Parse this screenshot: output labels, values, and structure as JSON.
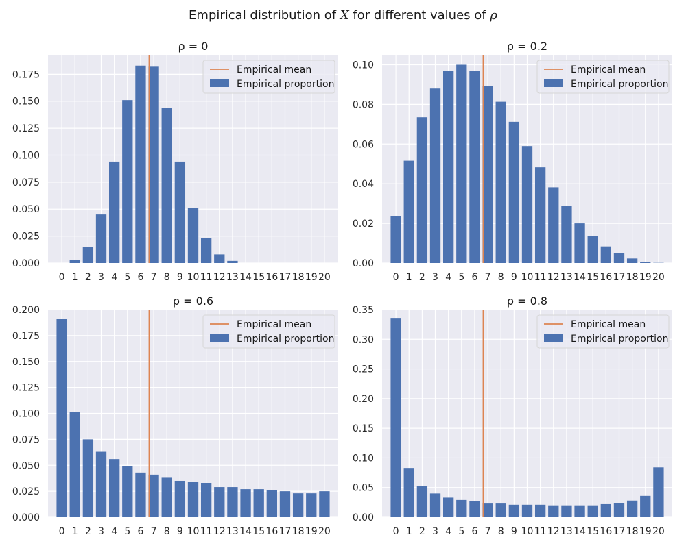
{
  "figure": {
    "title_prefix": "Empirical distribution of ",
    "title_var": "X",
    "title_mid": " for different values of ",
    "title_sym": "ρ"
  },
  "colors": {
    "bar": "#4c72b0",
    "mean_line": "#dd8452",
    "axes_bg": "#eaeaf2",
    "grid": "#ffffff"
  },
  "chart_data": [
    {
      "type": "bar",
      "title": "ρ = 0",
      "grid": true,
      "legend_position": "top-right",
      "legend": [
        "Empirical mean",
        "Empirical proportion"
      ],
      "categories": [
        "0",
        "1",
        "2",
        "3",
        "4",
        "5",
        "6",
        "7",
        "8",
        "9",
        "10",
        "11",
        "12",
        "13",
        "14",
        "15",
        "16",
        "17",
        "18",
        "19",
        "20"
      ],
      "series": [
        {
          "name": "Empirical proportion",
          "values": [
            0.0,
            0.003,
            0.015,
            0.045,
            0.094,
            0.151,
            0.183,
            0.182,
            0.144,
            0.094,
            0.051,
            0.023,
            0.008,
            0.002,
            0.0,
            0.0,
            0.0,
            0.0,
            0.0,
            0.0,
            0.0
          ]
        }
      ],
      "mean": 6.65,
      "ylim": [
        0,
        0.193
      ],
      "yticks": [
        "0.000",
        "0.025",
        "0.050",
        "0.075",
        "0.100",
        "0.125",
        "0.150",
        "0.175"
      ]
    },
    {
      "type": "bar",
      "title": "ρ = 0.2",
      "grid": true,
      "legend_position": "top-right",
      "legend": [
        "Empirical mean",
        "Empirical proportion"
      ],
      "categories": [
        "0",
        "1",
        "2",
        "3",
        "4",
        "5",
        "6",
        "7",
        "8",
        "9",
        "10",
        "11",
        "12",
        "13",
        "14",
        "15",
        "16",
        "17",
        "18",
        "19",
        "20"
      ],
      "series": [
        {
          "name": "Empirical proportion",
          "values": [
            0.0235,
            0.0516,
            0.0735,
            0.088,
            0.097,
            0.1,
            0.0968,
            0.0893,
            0.0813,
            0.0712,
            0.059,
            0.0483,
            0.0382,
            0.029,
            0.02,
            0.0138,
            0.0084,
            0.005,
            0.0023,
            0.0005,
            0.0001
          ]
        }
      ],
      "mean": 6.65,
      "ylim": [
        0,
        0.105
      ],
      "yticks": [
        "0.00",
        "0.02",
        "0.04",
        "0.06",
        "0.08",
        "0.10"
      ]
    },
    {
      "type": "bar",
      "title": "ρ = 0.6",
      "grid": true,
      "legend_position": "top-right",
      "legend": [
        "Empirical mean",
        "Empirical proportion"
      ],
      "categories": [
        "0",
        "1",
        "2",
        "3",
        "4",
        "5",
        "6",
        "7",
        "8",
        "9",
        "10",
        "11",
        "12",
        "13",
        "14",
        "15",
        "16",
        "17",
        "18",
        "19",
        "20"
      ],
      "series": [
        {
          "name": "Empirical proportion",
          "values": [
            0.191,
            0.101,
            0.075,
            0.063,
            0.056,
            0.049,
            0.043,
            0.041,
            0.038,
            0.035,
            0.034,
            0.033,
            0.029,
            0.029,
            0.027,
            0.027,
            0.026,
            0.025,
            0.023,
            0.023,
            0.025
          ]
        }
      ],
      "mean": 6.65,
      "ylim": [
        0,
        0.2
      ],
      "yticks": [
        "0.000",
        "0.025",
        "0.050",
        "0.075",
        "0.100",
        "0.125",
        "0.150",
        "0.175",
        "0.200"
      ]
    },
    {
      "type": "bar",
      "title": "ρ = 0.8",
      "grid": true,
      "legend_position": "top-right",
      "legend": [
        "Empirical mean",
        "Empirical proportion"
      ],
      "categories": [
        "0",
        "1",
        "2",
        "3",
        "4",
        "5",
        "6",
        "7",
        "8",
        "9",
        "10",
        "11",
        "12",
        "13",
        "14",
        "15",
        "16",
        "17",
        "18",
        "19",
        "20"
      ],
      "series": [
        {
          "name": "Empirical proportion",
          "values": [
            0.336,
            0.083,
            0.053,
            0.04,
            0.033,
            0.029,
            0.027,
            0.023,
            0.023,
            0.021,
            0.021,
            0.021,
            0.02,
            0.02,
            0.02,
            0.02,
            0.022,
            0.024,
            0.028,
            0.036,
            0.084
          ]
        }
      ],
      "mean": 6.65,
      "ylim": [
        0,
        0.35
      ],
      "yticks": [
        "0.00",
        "0.05",
        "0.10",
        "0.15",
        "0.20",
        "0.25",
        "0.30",
        "0.35"
      ]
    }
  ]
}
